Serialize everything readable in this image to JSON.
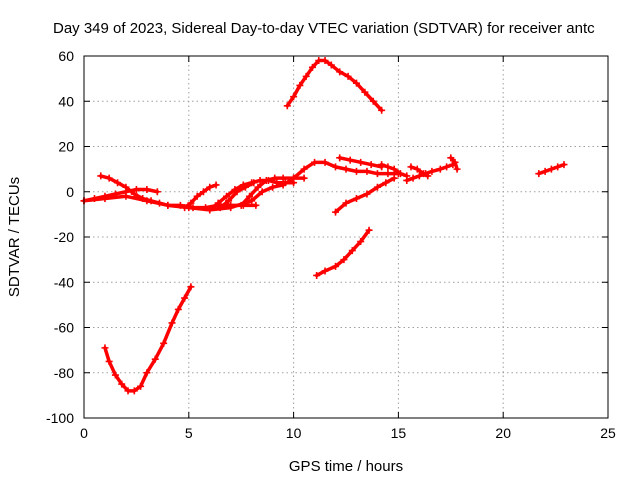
{
  "chart_data": {
    "type": "scatter",
    "title": "Day 349 of 2023, Sidereal Day-to-day VTEC variation (SDTVAR) for receiver antc",
    "xlabel": "GPS time / hours",
    "ylabel": "SDTVAR / TECUs",
    "xlim": [
      0,
      25
    ],
    "ylim": [
      -100,
      60
    ],
    "xticks": [
      "0",
      "5",
      "10",
      "15",
      "20",
      "25"
    ],
    "yticks": [
      "-100",
      "-80",
      "-60",
      "-40",
      "-20",
      "0",
      "20",
      "40",
      "60"
    ],
    "grid": true,
    "marker": "+",
    "color": "#ff0000",
    "series": [
      {
        "x": [
          1.0,
          1.2,
          1.5,
          1.8,
          2.1,
          2.4,
          2.7,
          3.0,
          3.4,
          3.8,
          4.2,
          4.5,
          4.8,
          5.1
        ],
        "y": [
          -69,
          -75,
          -81,
          -85,
          -88,
          -88,
          -86,
          -80,
          -74,
          -67,
          -58,
          -52,
          -47,
          -42
        ]
      },
      {
        "x": [
          9.7,
          10.0,
          10.3,
          10.6,
          10.9,
          11.2,
          11.5,
          11.8,
          12.2,
          12.6,
          13.0,
          13.4,
          13.8,
          14.2
        ],
        "y": [
          38,
          42,
          47,
          51,
          55,
          58,
          58,
          56,
          53,
          51,
          48,
          44,
          40,
          36
        ]
      },
      {
        "x": [
          11.1,
          11.5,
          12.0,
          12.4,
          12.8,
          13.2,
          13.6
        ],
        "y": [
          -37,
          -35,
          -33,
          -30,
          -26,
          -22,
          -17
        ]
      },
      {
        "x": [
          12.0,
          12.5,
          13.0,
          13.5,
          14.0,
          14.4,
          14.8
        ],
        "y": [
          -9,
          -5,
          -3,
          -1,
          2,
          4,
          6
        ]
      },
      {
        "x": [
          0.0,
          1.0,
          2.0,
          3.0,
          4.0,
          5.0,
          6.0,
          7.0,
          8.0,
          8.5,
          9.0,
          9.5,
          10.0,
          10.5,
          11.0,
          11.5,
          12.0,
          12.5,
          13.0,
          13.5,
          14.0,
          14.5,
          15.0
        ],
        "y": [
          -4,
          -3,
          -2,
          -4,
          -6,
          -7,
          -8,
          -7,
          -4,
          0,
          2,
          3,
          6,
          10,
          13,
          13,
          11,
          10,
          9,
          9,
          8,
          8,
          8
        ]
      },
      {
        "x": [
          0.0,
          0.5,
          1.0,
          1.5,
          2.0,
          2.5,
          3.0,
          3.5
        ],
        "y": [
          -4,
          -3,
          -2,
          -1,
          0,
          1,
          1,
          0
        ]
      },
      {
        "x": [
          0.8,
          1.2,
          1.6,
          2.0,
          2.4,
          2.8,
          3.2,
          3.6,
          4.0,
          4.6,
          5.2,
          5.8,
          6.4,
          7.0,
          7.6,
          8.2
        ],
        "y": [
          7,
          6,
          4,
          2,
          -1,
          -3,
          -4,
          -5,
          -6,
          -6,
          -7,
          -7,
          -6,
          -6,
          -6,
          -6
        ]
      },
      {
        "x": [
          4.8,
          5.1,
          5.4,
          5.7,
          6.0,
          6.3
        ],
        "y": [
          -7,
          -5,
          -2,
          0,
          2,
          3
        ]
      },
      {
        "x": [
          6.0,
          6.4,
          6.8,
          7.2,
          7.6,
          8.0,
          8.4,
          8.8,
          9.2,
          9.6,
          10.0
        ],
        "y": [
          -8,
          -5,
          -2,
          1,
          3,
          4,
          5,
          5,
          4,
          4,
          4
        ]
      },
      {
        "x": [
          6.5,
          6.9,
          7.3,
          7.7,
          8.1
        ],
        "y": [
          -7,
          -4,
          0,
          2,
          4
        ]
      },
      {
        "x": [
          7.5,
          7.9,
          8.3,
          8.7,
          9.1,
          9.5,
          10.0,
          10.5
        ],
        "y": [
          -6,
          -2,
          2,
          5,
          6,
          6,
          6,
          6
        ]
      },
      {
        "x": [
          12.2,
          12.7,
          13.2,
          13.7,
          14.2
        ],
        "y": [
          15,
          14,
          13,
          12,
          11
        ]
      },
      {
        "x": [
          14.2,
          14.5,
          14.8,
          15.1,
          15.4
        ],
        "y": [
          12,
          11,
          10,
          8,
          7
        ]
      },
      {
        "x": [
          15.4,
          15.7,
          16.0,
          16.3,
          16.6,
          17.0,
          17.3,
          17.6
        ],
        "y": [
          5,
          6,
          7,
          8,
          9,
          10,
          11,
          12
        ]
      },
      {
        "x": [
          15.6,
          15.9,
          16.2,
          16.4
        ],
        "y": [
          11,
          10,
          8,
          7
        ]
      },
      {
        "x": [
          17.5,
          17.7,
          17.8
        ],
        "y": [
          15,
          13,
          10
        ]
      },
      {
        "x": [
          21.7,
          22.0,
          22.3,
          22.6,
          22.9
        ],
        "y": [
          8,
          9,
          10,
          11,
          12
        ]
      }
    ]
  }
}
